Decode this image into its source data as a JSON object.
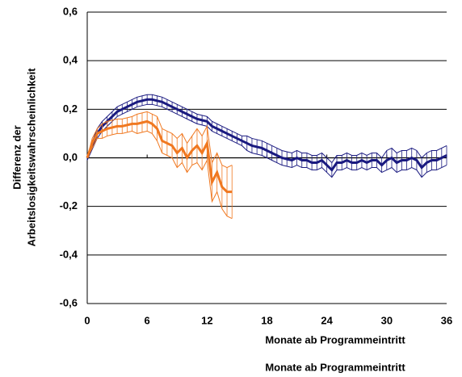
{
  "chart_data": {
    "type": "line",
    "ylabel": [
      "Differenz der",
      "Arbeitslosigkeitswahrscheinlichkeit"
    ],
    "xlabel": "Monate ab Programmeintritt",
    "caption": "Monate ab Programmeintritt",
    "xlim": [
      0,
      36
    ],
    "xticks": [
      0,
      6,
      12,
      18,
      24,
      30,
      36
    ],
    "ylim": [
      -0.6,
      0.6
    ],
    "yticks": [
      {
        "value": -0.6,
        "label": "-0,6"
      },
      {
        "value": -0.4,
        "label": "-0,4"
      },
      {
        "value": -0.2,
        "label": "-0,2"
      },
      {
        "value": 0,
        "label": "0,0"
      },
      {
        "value": 0.2,
        "label": "0,2"
      },
      {
        "value": 0.4,
        "label": "0,4"
      },
      {
        "value": 0.6,
        "label": "0,6"
      }
    ],
    "grid": true,
    "series": [
      {
        "color": "#1a1a80",
        "x": [
          0,
          0.5,
          1,
          1.5,
          2,
          2.5,
          3,
          3.5,
          4,
          4.5,
          5,
          5.5,
          6,
          6.5,
          7,
          7.5,
          8,
          8.5,
          9,
          9.5,
          10,
          10.5,
          11,
          11.5,
          12,
          12.5,
          13,
          13.5,
          14,
          14.5,
          15,
          15.5,
          16,
          16.5,
          17,
          17.5,
          18,
          18.5,
          19,
          19.5,
          20,
          20.5,
          21,
          21.5,
          22,
          22.5,
          23,
          23.5,
          24,
          24.5,
          25,
          25.5,
          26,
          26.5,
          27,
          27.5,
          28,
          28.5,
          29,
          29.5,
          30,
          30.5,
          31,
          31.5,
          32,
          32.5,
          33,
          33.5,
          34,
          34.5,
          35,
          35.5,
          36
        ],
        "values": [
          0,
          0.05,
          0.1,
          0.13,
          0.15,
          0.17,
          0.19,
          0.2,
          0.21,
          0.22,
          0.23,
          0.235,
          0.24,
          0.24,
          0.235,
          0.23,
          0.22,
          0.21,
          0.2,
          0.19,
          0.18,
          0.17,
          0.16,
          0.155,
          0.15,
          0.13,
          0.12,
          0.11,
          0.1,
          0.09,
          0.08,
          0.07,
          0.06,
          0.05,
          0.045,
          0.04,
          0.03,
          0.02,
          0.01,
          0,
          -0.005,
          -0.01,
          0,
          -0.01,
          -0.01,
          -0.02,
          -0.02,
          -0.01,
          -0.03,
          -0.05,
          -0.02,
          -0.02,
          -0.01,
          -0.02,
          -0.02,
          -0.01,
          -0.02,
          -0.01,
          -0.01,
          -0.03,
          -0.01,
          0,
          -0.02,
          -0.01,
          -0.01,
          0,
          -0.01,
          -0.04,
          -0.02,
          -0.01,
          -0.01,
          0,
          0.01
        ],
        "errors": [
          0.01,
          0.015,
          0.02,
          0.02,
          0.02,
          0.02,
          0.02,
          0.02,
          0.02,
          0.02,
          0.02,
          0.02,
          0.02,
          0.02,
          0.02,
          0.02,
          0.02,
          0.02,
          0.02,
          0.02,
          0.02,
          0.02,
          0.02,
          0.02,
          0.02,
          0.02,
          0.02,
          0.02,
          0.02,
          0.02,
          0.02,
          0.02,
          0.03,
          0.03,
          0.03,
          0.03,
          0.03,
          0.03,
          0.03,
          0.03,
          0.03,
          0.03,
          0.03,
          0.03,
          0.03,
          0.03,
          0.03,
          0.03,
          0.03,
          0.03,
          0.03,
          0.03,
          0.03,
          0.03,
          0.03,
          0.03,
          0.03,
          0.03,
          0.03,
          0.03,
          0.04,
          0.04,
          0.04,
          0.04,
          0.04,
          0.04,
          0.04,
          0.04,
          0.04,
          0.04,
          0.04,
          0.04,
          0.04
        ]
      },
      {
        "color": "#f07820",
        "x": [
          0,
          0.5,
          1,
          1.5,
          2,
          2.5,
          3,
          3.5,
          4,
          4.5,
          5,
          5.5,
          6,
          6.5,
          7,
          7.5,
          8,
          8.5,
          9,
          9.5,
          10,
          10.5,
          11,
          11.5,
          12,
          12.5,
          13,
          13.5,
          14,
          14.5
        ],
        "values": [
          0,
          0.06,
          0.1,
          0.11,
          0.12,
          0.125,
          0.13,
          0.13,
          0.135,
          0.14,
          0.14,
          0.145,
          0.15,
          0.14,
          0.12,
          0.07,
          0.06,
          0.05,
          0.02,
          0.04,
          0,
          0.03,
          0.05,
          0.02,
          0.06,
          -0.1,
          -0.06,
          -0.12,
          -0.14,
          -0.14
        ],
        "errors": [
          0,
          0.02,
          0.02,
          0.03,
          0.03,
          0.03,
          0.03,
          0.03,
          0.03,
          0.03,
          0.04,
          0.04,
          0.04,
          0.04,
          0.05,
          0.05,
          0.05,
          0.05,
          0.06,
          0.06,
          0.06,
          0.06,
          0.07,
          0.07,
          0.07,
          0.08,
          0.08,
          0.09,
          0.1,
          0.11
        ]
      }
    ]
  }
}
